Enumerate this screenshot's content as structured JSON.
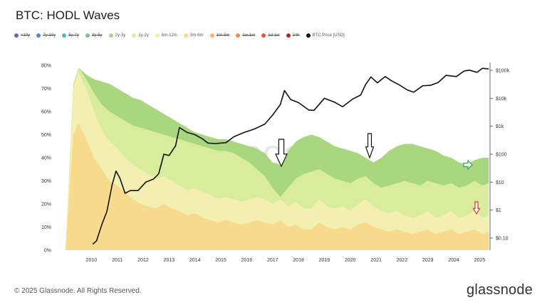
{
  "title": "BTC: HODL Waves",
  "legend": [
    {
      "label": "<10y",
      "color": "#6b62b5",
      "struck": true
    },
    {
      "label": "7y-10y",
      "color": "#4f8fc9",
      "struck": true
    },
    {
      "label": "5y-7y",
      "color": "#54b6c2",
      "struck": true
    },
    {
      "label": "3y-5y",
      "color": "#77c493",
      "struck": true
    },
    {
      "label": "2y-3y",
      "color": "#a9d77f",
      "struck": false
    },
    {
      "label": "1y-2y",
      "color": "#d9ec9c",
      "struck": false
    },
    {
      "label": "6m-12m",
      "color": "#f3efb0",
      "struck": false
    },
    {
      "label": "3m-6m",
      "color": "#f8da8c",
      "struck": false
    },
    {
      "label": "1m-3m",
      "color": "#f6b66a",
      "struck": true
    },
    {
      "label": "1w-1m",
      "color": "#ef8a57",
      "struck": true
    },
    {
      "label": "1d-1w",
      "color": "#e0574b",
      "struck": true
    },
    {
      "label": "24h",
      "color": "#b32532",
      "struck": true
    },
    {
      "label": "BTC Price [USD]",
      "color": "#111111",
      "struck": false
    }
  ],
  "chart_data": {
    "type": "area",
    "x_ticks": [
      "2010",
      "2011",
      "2012",
      "2013",
      "2014",
      "2015",
      "2016",
      "2017",
      "2018",
      "2019",
      "2020",
      "2021",
      "2022",
      "2023",
      "2024",
      "2025"
    ],
    "y_left_ticks": [
      "0%",
      "10%",
      "20%",
      "30%",
      "40%",
      "50%",
      "60%",
      "70%",
      "80%"
    ],
    "y_right_ticks": [
      "$0.10",
      "$1",
      "$10",
      "$100",
      "$1k",
      "$10k",
      "$100k"
    ],
    "y_left_range": [
      0,
      80
    ],
    "y_right_scale": "log",
    "x_years": [
      2009.5,
      2009.8,
      2010.0,
      2010.3,
      2010.6,
      2010.9,
      2011.2,
      2011.5,
      2011.8,
      2012.1,
      2012.4,
      2012.7,
      2013.0,
      2013.3,
      2013.6,
      2013.9,
      2014.2,
      2014.5,
      2014.8,
      2015.1,
      2015.4,
      2015.7,
      2016.0,
      2016.3,
      2016.6,
      2016.9,
      2017.2,
      2017.5,
      2017.8,
      2018.1,
      2018.4,
      2018.7,
      2019.0,
      2019.3,
      2019.6,
      2019.9,
      2020.2,
      2020.5,
      2020.8,
      2021.1,
      2021.4,
      2021.7,
      2022.0,
      2022.3,
      2022.6,
      2022.9,
      2023.2,
      2023.5,
      2023.8,
      2024.1,
      2024.4,
      2024.7,
      2025.0,
      2025.3,
      2025.6,
      2025.85
    ],
    "series": [
      {
        "name": "3m-6m",
        "color": "#f8da8c",
        "values": [
          0,
          50,
          55,
          48,
          40,
          35,
          30,
          28,
          25,
          22,
          20,
          19,
          18,
          20,
          18,
          17,
          15,
          16,
          14,
          13,
          12,
          13,
          12,
          11,
          12,
          13,
          12,
          11,
          13,
          10,
          11,
          9,
          9,
          12,
          10,
          9,
          10,
          9,
          11,
          12,
          10,
          9,
          8,
          9,
          8,
          7,
          8,
          9,
          7,
          8,
          9,
          7,
          8,
          9,
          7,
          8
        ]
      },
      {
        "name": "6m-12m",
        "color": "#f3efb0",
        "values": [
          0,
          70,
          77,
          70,
          60,
          52,
          47,
          44,
          40,
          37,
          35,
          33,
          31,
          32,
          30,
          28,
          26,
          27,
          25,
          24,
          22,
          23,
          22,
          21,
          22,
          23,
          22,
          20,
          22,
          19,
          21,
          18,
          18,
          22,
          19,
          18,
          19,
          17,
          20,
          22,
          19,
          17,
          16,
          17,
          15,
          14,
          15,
          17,
          14,
          15,
          17,
          14,
          15,
          17,
          14,
          15
        ]
      },
      {
        "name": "1y-2y",
        "color": "#d9ec9c",
        "values": [
          0,
          72,
          79,
          74,
          68,
          63,
          60,
          58,
          56,
          54,
          53,
          52,
          51,
          50,
          49,
          48,
          47,
          46,
          45,
          44,
          43,
          43,
          42,
          40,
          38,
          35,
          32,
          27,
          23,
          27,
          31,
          33,
          34,
          35,
          33,
          31,
          30,
          29,
          31,
          32,
          29,
          27,
          28,
          29,
          30,
          29,
          28,
          30,
          29,
          28,
          29,
          27,
          28,
          30,
          28,
          29
        ]
      },
      {
        "name": "2y-3y",
        "color": "#a9d77f",
        "values": [
          0,
          72,
          79,
          76,
          74,
          73,
          72,
          70,
          68,
          66,
          65,
          63,
          61,
          59,
          57,
          55,
          53,
          51,
          50,
          49,
          48,
          48,
          47,
          46,
          45,
          44,
          42,
          38,
          37,
          43,
          47,
          49,
          50,
          49,
          47,
          45,
          44,
          43,
          42,
          40,
          38,
          40,
          43,
          45,
          46,
          46,
          45,
          44,
          43,
          41,
          40,
          38,
          37,
          39,
          40,
          40
        ]
      }
    ],
    "price_series": {
      "name": "BTC Price [USD]",
      "color": "#111111",
      "x": [
        2010.55,
        2010.7,
        2010.9,
        2011.1,
        2011.3,
        2011.45,
        2011.6,
        2011.8,
        2012.0,
        2012.3,
        2012.6,
        2012.9,
        2013.1,
        2013.3,
        2013.5,
        2013.75,
        2013.9,
        2014.2,
        2014.5,
        2014.8,
        2015.0,
        2015.3,
        2015.7,
        2016.0,
        2016.4,
        2016.8,
        2017.2,
        2017.5,
        2017.8,
        2017.96,
        2018.2,
        2018.5,
        2018.9,
        2019.1,
        2019.5,
        2019.9,
        2020.2,
        2020.6,
        2020.9,
        2021.1,
        2021.3,
        2021.55,
        2021.85,
        2022.1,
        2022.4,
        2022.7,
        2022.95,
        2023.3,
        2023.6,
        2023.9,
        2024.2,
        2024.6,
        2024.9,
        2025.1,
        2025.4,
        2025.6,
        2025.85
      ],
      "y": [
        0.06,
        0.08,
        0.3,
        0.9,
        8,
        25,
        14,
        4,
        5,
        5,
        10,
        13,
        20,
        100,
        90,
        200,
        900,
        600,
        500,
        350,
        250,
        240,
        260,
        420,
        600,
        800,
        1200,
        2500,
        6000,
        19000,
        9000,
        7000,
        3800,
        3700,
        10000,
        7200,
        5000,
        9500,
        13000,
        32000,
        58000,
        36000,
        60000,
        42000,
        30000,
        20000,
        16500,
        28000,
        29000,
        37000,
        66000,
        60000,
        95000,
        102000,
        85000,
        118000,
        113000
      ]
    }
  },
  "footer": {
    "copyright": "© 2025 Glassnode. All Rights Reserved.",
    "brand": "glassnode",
    "watermark": "glassnode"
  }
}
